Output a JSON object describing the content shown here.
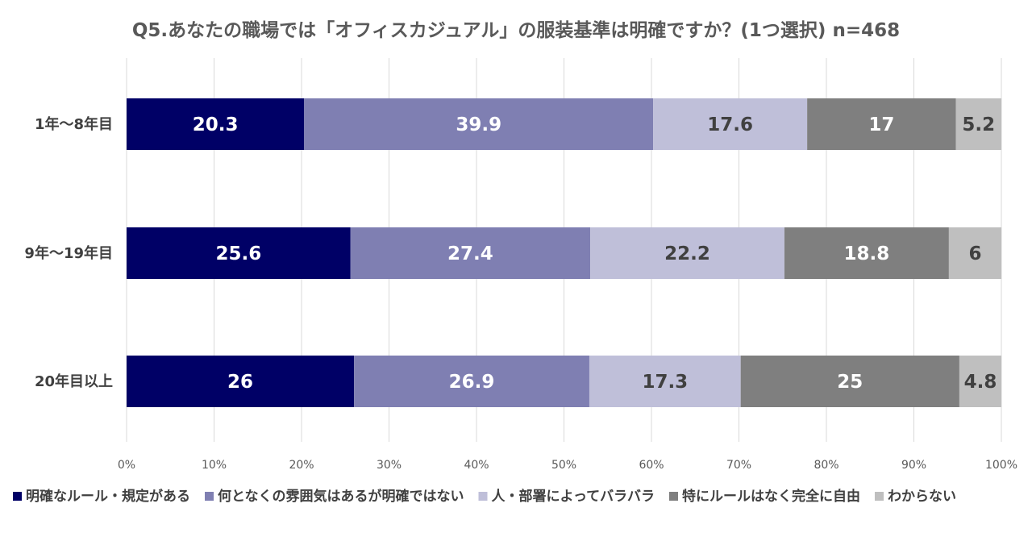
{
  "chart_data": {
    "type": "bar",
    "orientation": "horizontal",
    "stacked": "percent",
    "title": "Q5.あなたの職場では「オフィスカジュアル」の服装基準は明確ですか？(1つ選択) n=468",
    "categories": [
      "1年～8年目",
      "9年～19年目",
      "20年目以上"
    ],
    "series": [
      {
        "name": "明確なルール・規定がある",
        "color": "#000066",
        "label_color": "#ffffff",
        "values": [
          20.3,
          25.6,
          26
        ]
      },
      {
        "name": "何となくの雰囲気はあるが明確ではない",
        "color": "#7f7fb2",
        "label_color": "#ffffff",
        "values": [
          39.9,
          27.4,
          26.9
        ]
      },
      {
        "name": "人・部署によってバラバラ",
        "color": "#bfbfd9",
        "label_color": "#404040",
        "values": [
          17.6,
          22.2,
          17.3
        ]
      },
      {
        "name": "特にルールはなく完全に自由",
        "color": "#7f7f7f",
        "label_color": "#ffffff",
        "values": [
          17,
          18.8,
          25
        ]
      },
      {
        "name": "わからない",
        "color": "#bfbfbf",
        "label_color": "#404040",
        "values": [
          5.2,
          6,
          4.8
        ]
      }
    ],
    "x_ticks": [
      "0%",
      "10%",
      "20%",
      "30%",
      "40%",
      "50%",
      "60%",
      "70%",
      "80%",
      "90%",
      "100%"
    ],
    "xlim": [
      0,
      100
    ],
    "grid": true,
    "legend": "bottom"
  }
}
